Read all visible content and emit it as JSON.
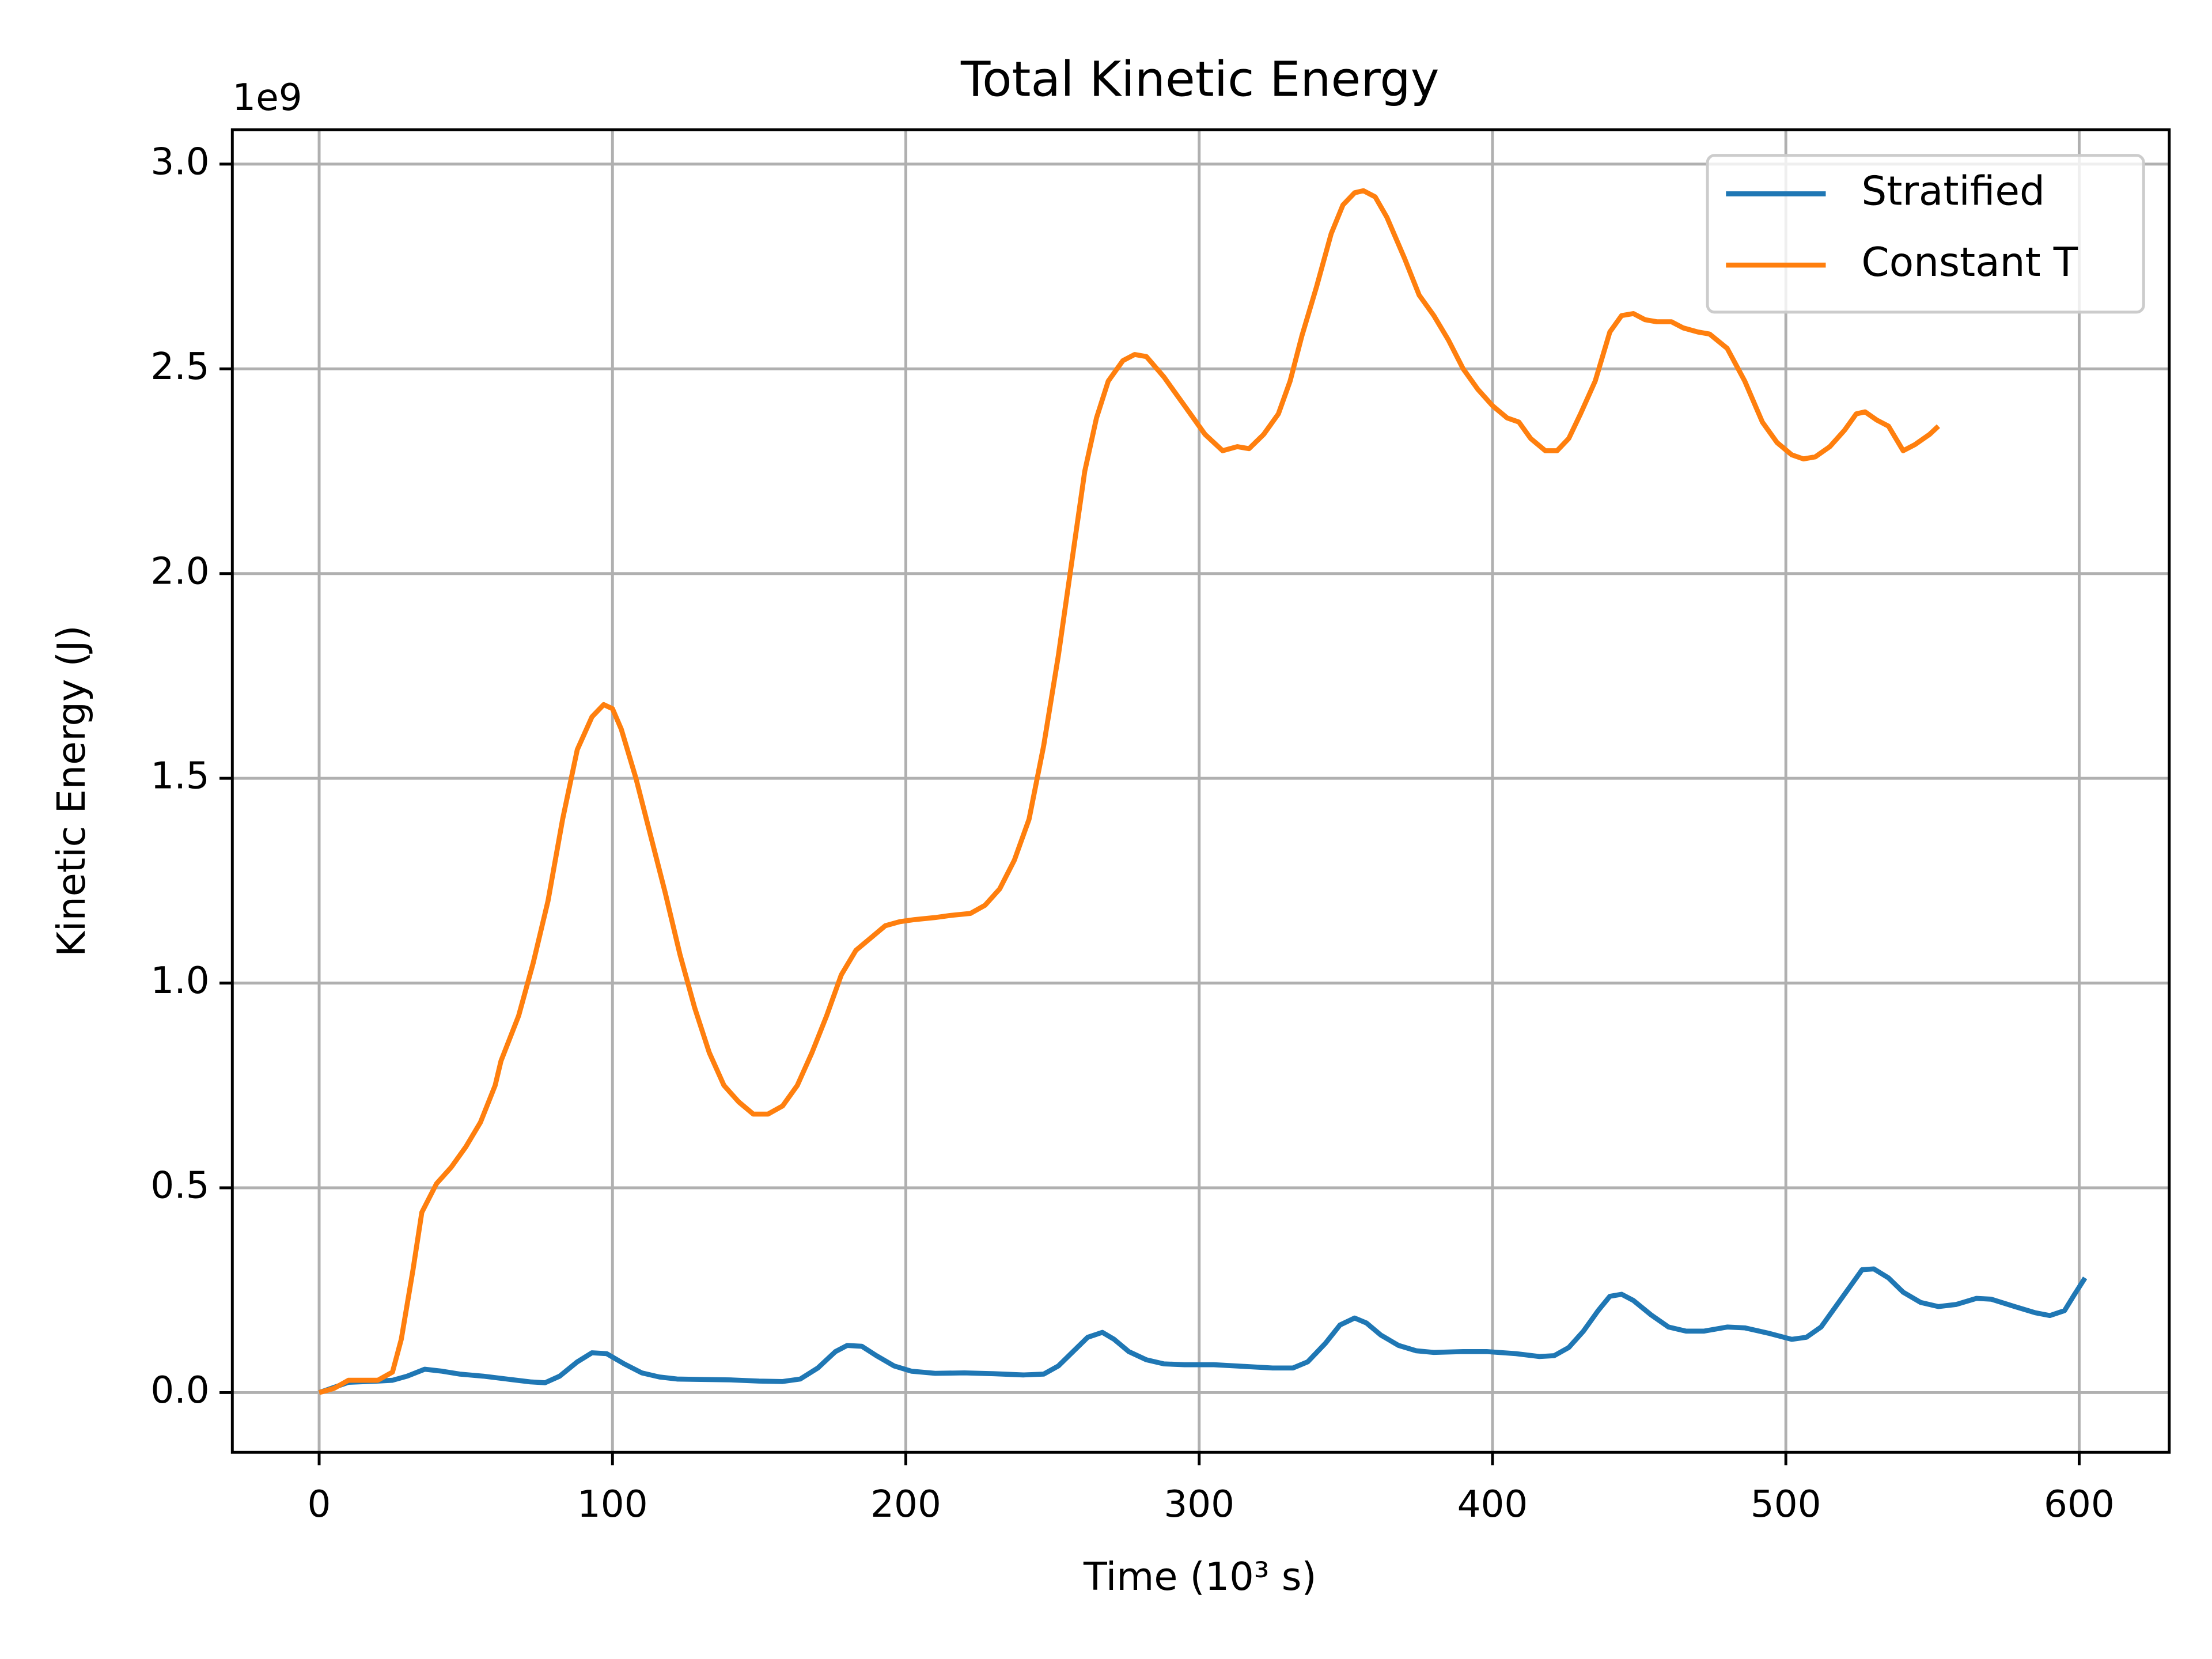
{
  "chart_data": {
    "type": "line",
    "title": "Total Kinetic Energy",
    "x_label": "Time (10³ s)",
    "y_label": "Kinetic Energy (J)",
    "y_offset_label": "1e9",
    "xlim": [
      -29.6,
      630.7
    ],
    "ylim": [
      -0.146,
      3.084
    ],
    "xticks": [
      0,
      100,
      200,
      300,
      400,
      500,
      600
    ],
    "yticks": [
      {
        "value": 0,
        "label": "0.0"
      },
      0.5,
      {
        "value": 1,
        "label": "1.0"
      },
      1.5,
      {
        "value": 2,
        "label": "2.0"
      },
      2.5,
      {
        "value": 3,
        "label": "3.0"
      }
    ],
    "grid": true,
    "legend": "upper right",
    "series": [
      {
        "name": "Stratified",
        "color": "#1f77b4",
        "x": [
          0,
          10,
          20,
          25,
          30,
          36,
          42,
          48,
          56,
          64,
          72,
          77,
          82,
          88,
          93,
          98,
          104,
          110,
          116,
          122,
          130,
          140,
          150,
          158,
          164,
          170,
          176,
          180,
          185,
          190,
          196,
          202,
          210,
          220,
          230,
          240,
          247,
          252,
          257,
          262,
          267,
          271,
          276,
          282,
          288,
          295,
          305,
          315,
          325,
          332,
          337,
          343,
          348,
          353,
          357,
          362,
          368,
          374,
          380,
          390,
          398,
          408,
          416,
          421,
          426,
          431,
          436,
          440,
          444,
          448,
          454,
          460,
          466,
          472,
          480,
          486,
          494,
          502,
          507,
          512,
          517,
          522,
          526,
          530,
          535,
          540,
          546,
          552,
          558,
          565,
          570,
          578,
          585,
          590,
          595,
          598,
          602
        ],
        "values": [
          0,
          0.025,
          0.028,
          0.03,
          0.04,
          0.057,
          0.052,
          0.045,
          0.04,
          0.033,
          0.026,
          0.024,
          0.04,
          0.075,
          0.097,
          0.095,
          0.07,
          0.048,
          0.038,
          0.033,
          0.032,
          0.031,
          0.028,
          0.027,
          0.033,
          0.06,
          0.1,
          0.115,
          0.113,
          0.09,
          0.065,
          0.052,
          0.047,
          0.048,
          0.046,
          0.043,
          0.045,
          0.065,
          0.1,
          0.135,
          0.147,
          0.13,
          0.1,
          0.08,
          0.07,
          0.068,
          0.068,
          0.064,
          0.06,
          0.06,
          0.075,
          0.12,
          0.165,
          0.182,
          0.17,
          0.14,
          0.115,
          0.102,
          0.098,
          0.1,
          0.1,
          0.095,
          0.088,
          0.09,
          0.11,
          0.15,
          0.2,
          0.235,
          0.24,
          0.225,
          0.19,
          0.16,
          0.15,
          0.15,
          0.16,
          0.158,
          0.145,
          0.13,
          0.135,
          0.16,
          0.21,
          0.26,
          0.3,
          0.302,
          0.28,
          0.245,
          0.22,
          0.21,
          0.215,
          0.23,
          0.228,
          0.21,
          0.195,
          0.188,
          0.2,
          0.235,
          0.28
        ]
      },
      {
        "name": "Constant T",
        "color": "#ff7f0e",
        "x": [
          0,
          5,
          10,
          15,
          20,
          25,
          28,
          32,
          35,
          40,
          45,
          50,
          55,
          60,
          62,
          68,
          73,
          78,
          83,
          88,
          93,
          97,
          100,
          103,
          108,
          113,
          118,
          123,
          128,
          133,
          138,
          143,
          148,
          153,
          158,
          163,
          168,
          173,
          178,
          183,
          188,
          193,
          198,
          203,
          210,
          215,
          222,
          227,
          232,
          237,
          242,
          247,
          252,
          257,
          261,
          265,
          269,
          274,
          278,
          282,
          288,
          295,
          302,
          308,
          313,
          317,
          322,
          327,
          331,
          335,
          340,
          345,
          349,
          353,
          356,
          360,
          364,
          370,
          375,
          380,
          385,
          390,
          395,
          400,
          405,
          409,
          413,
          418,
          422,
          426,
          430,
          435,
          440,
          444,
          448,
          452,
          456,
          461,
          465,
          470,
          474,
          480,
          486,
          492,
          497,
          502,
          506,
          510,
          515,
          520,
          524,
          527,
          531,
          535,
          540,
          544,
          549,
          552
        ],
        "values": [
          0,
          0.01,
          0.03,
          0.03,
          0.03,
          0.05,
          0.13,
          0.3,
          0.44,
          0.51,
          0.55,
          0.6,
          0.66,
          0.75,
          0.81,
          0.92,
          1.05,
          1.2,
          1.4,
          1.57,
          1.65,
          1.68,
          1.67,
          1.62,
          1.5,
          1.36,
          1.22,
          1.07,
          0.94,
          0.83,
          0.75,
          0.71,
          0.68,
          0.68,
          0.7,
          0.75,
          0.83,
          0.92,
          1.02,
          1.08,
          1.11,
          1.14,
          1.15,
          1.155,
          1.16,
          1.165,
          1.17,
          1.19,
          1.23,
          1.3,
          1.4,
          1.58,
          1.8,
          2.05,
          2.25,
          2.38,
          2.47,
          2.52,
          2.535,
          2.53,
          2.48,
          2.41,
          2.34,
          2.3,
          2.31,
          2.305,
          2.34,
          2.39,
          2.47,
          2.58,
          2.7,
          2.83,
          2.9,
          2.93,
          2.935,
          2.92,
          2.87,
          2.77,
          2.68,
          2.63,
          2.57,
          2.5,
          2.45,
          2.41,
          2.38,
          2.37,
          2.33,
          2.3,
          2.3,
          2.33,
          2.39,
          2.47,
          2.59,
          2.63,
          2.635,
          2.62,
          2.615,
          2.615,
          2.6,
          2.59,
          2.585,
          2.55,
          2.47,
          2.37,
          2.32,
          2.29,
          2.28,
          2.285,
          2.31,
          2.35,
          2.39,
          2.395,
          2.375,
          2.36,
          2.3,
          2.315,
          2.34,
          2.36
        ]
      }
    ]
  }
}
